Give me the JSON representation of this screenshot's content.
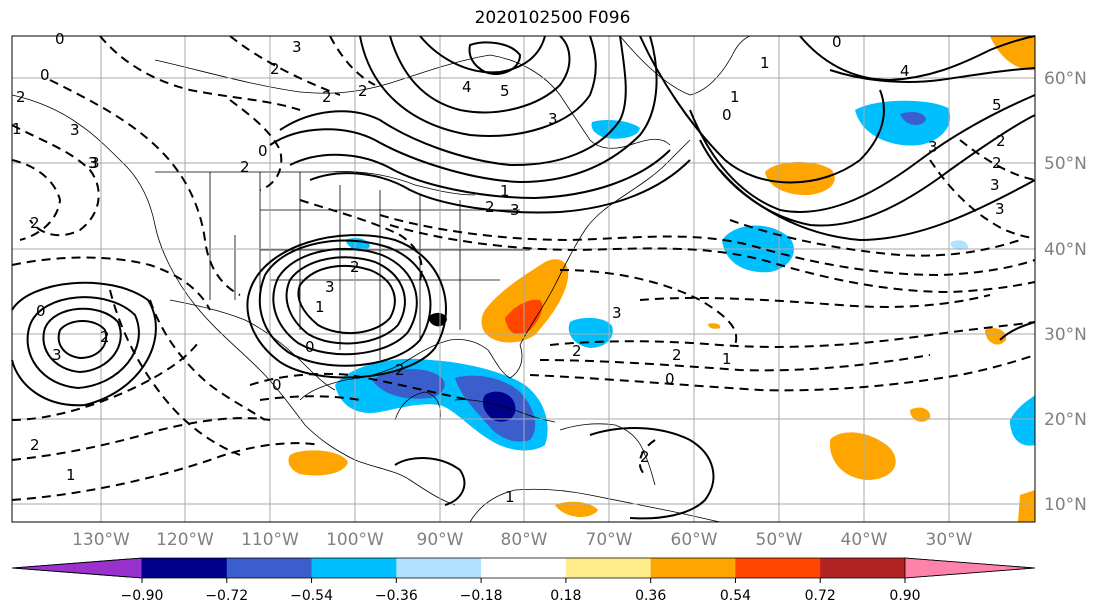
{
  "title": "2020102500 F096",
  "map": {
    "projection": "cylindrical",
    "lon_range": [
      -140,
      -17
    ],
    "lat_range": [
      7,
      65
    ],
    "lon_labels": [
      "130°W",
      "120°W",
      "110°W",
      "100°W",
      "90°W",
      "80°W",
      "70°W",
      "60°W",
      "50°W",
      "40°W",
      "30°W"
    ],
    "lat_labels": [
      "60°N",
      "50°N",
      "40°N",
      "30°N",
      "20°N",
      "10°N"
    ],
    "gridlines": true
  },
  "contour_labels": [
    "0",
    "2",
    "3",
    "2",
    "1",
    "3",
    "2",
    "4",
    "5",
    "3",
    "2",
    "2",
    "3",
    "0",
    "1",
    "2",
    "3",
    "0",
    "5",
    "1",
    "3",
    "4",
    "3",
    "2",
    "0",
    "2",
    "3",
    "0",
    "1",
    "2",
    "3",
    "2",
    "3",
    "2",
    "0",
    "1",
    "2",
    "0",
    "3",
    "2",
    "1",
    "0",
    "2",
    "1",
    "2",
    "3",
    "2",
    "1",
    "0"
  ],
  "colorbar": {
    "ticks": [
      "−0.90",
      "−0.72",
      "−0.54",
      "−0.36",
      "−0.18",
      "0.18",
      "0.36",
      "0.54",
      "0.72",
      "0.90"
    ],
    "colors": [
      "#9932cc",
      "#00008b",
      "#3a5fcd",
      "#00bfff",
      "#b0e2ff",
      "#ffffff",
      "#ffec8b",
      "#ffa500",
      "#ff4500",
      "#b22222",
      "#ff82ab"
    ],
    "extend": "both"
  },
  "colors": {
    "neg_strong": "#00008b",
    "neg_mid": "#3a5fcd",
    "neg": "#00bfff",
    "neg_light": "#b0e2ff",
    "pos_light": "#ffec8b",
    "pos": "#ffa500",
    "pos_mid": "#ff4500"
  }
}
